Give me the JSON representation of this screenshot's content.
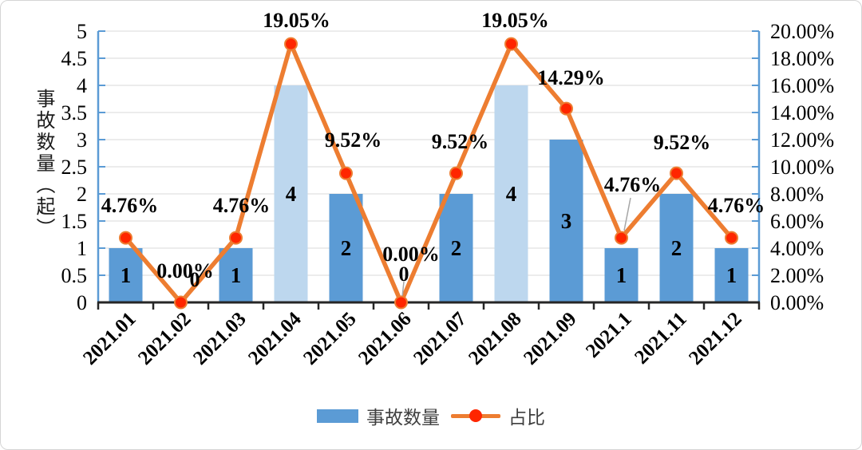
{
  "chart_data": {
    "type": "combo-bar-line",
    "title": "",
    "categories": [
      "2021.01",
      "2021.02",
      "2021.03",
      "2021.04",
      "2021.05",
      "2021.06",
      "2021.07",
      "2021.08",
      "2021.09",
      "2021.1",
      "2021.11",
      "2021.12"
    ],
    "series": [
      {
        "name": "事故数量",
        "type": "bar",
        "axis": "left",
        "values": [
          1,
          0,
          1,
          4,
          2,
          0,
          2,
          4,
          3,
          1,
          2,
          1
        ],
        "data_labels": [
          "1",
          "0",
          "1",
          "4",
          "2",
          "0",
          "2",
          "4",
          "3",
          "1",
          "2",
          "1"
        ],
        "bar_colors": [
          "#5B9BD5",
          "#5B9BD5",
          "#5B9BD5",
          "#BDD7EE",
          "#5B9BD5",
          "#5B9BD5",
          "#5B9BD5",
          "#BDD7EE",
          "#5B9BD5",
          "#5B9BD5",
          "#5B9BD5",
          "#5B9BD5"
        ]
      },
      {
        "name": "占比",
        "type": "line",
        "axis": "right",
        "values": [
          4.76,
          0,
          4.76,
          19.05,
          9.52,
          0,
          9.52,
          19.05,
          14.29,
          4.76,
          9.52,
          4.76
        ],
        "data_labels": [
          "4.76%",
          "0.00%",
          "4.76%",
          "19.05%",
          "9.52%",
          "0.00%",
          "9.52%",
          "19.05%",
          "14.29%",
          "4.76%",
          "9.52%",
          "4.76%"
        ]
      }
    ],
    "left_axis": {
      "title": "事故数量（起）",
      "min": 0,
      "max": 5,
      "tick_labels": [
        "5",
        "4.5",
        "4",
        "3.5",
        "3",
        "2.5",
        "2",
        "1.5",
        "1",
        "0.5",
        "0"
      ]
    },
    "right_axis": {
      "min": 0,
      "max": 20,
      "tick_labels": [
        "20.00%",
        "18.00%",
        "16.00%",
        "14.00%",
        "12.00%",
        "10.00%",
        "8.00%",
        "6.00%",
        "4.00%",
        "2.00%",
        "0.00%"
      ]
    },
    "legend": {
      "position": "bottom",
      "items": [
        {
          "label": "事故数量",
          "swatch": "bar"
        },
        {
          "label": "占比",
          "swatch": "line-marker"
        }
      ]
    },
    "grid": true,
    "colors": {
      "bar_primary": "#5B9BD5",
      "bar_light": "#BDD7EE",
      "line": "#ED7D31",
      "marker": "#FF2600",
      "gridline": "#D9D9D9",
      "axis_side": "#5B9BD5",
      "axis_bottom": "#262626",
      "label_text": "#000000",
      "leader_line": "#A6A6A6"
    }
  }
}
